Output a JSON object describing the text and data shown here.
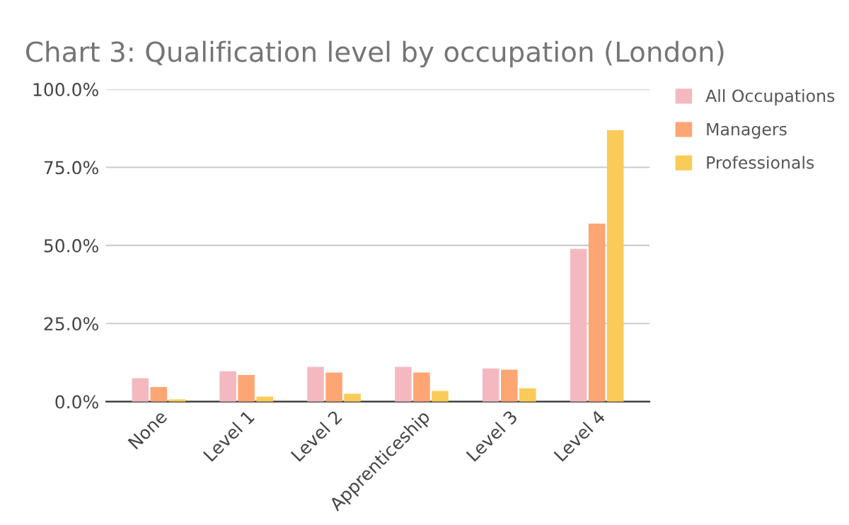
{
  "chart_data": {
    "type": "bar",
    "title": "Chart 3: Qualification level by occupation (London)",
    "categories": [
      "None",
      "Level 1",
      "Level 2",
      "Apprenticeship",
      "Level 3",
      "Level 4"
    ],
    "series": [
      {
        "name": "All Occupations",
        "color": "#f4b9c0",
        "values": [
          7.5,
          9.7,
          11.1,
          11.1,
          10.6,
          48.9
        ]
      },
      {
        "name": "Managers",
        "color": "#fea574",
        "values": [
          4.7,
          8.5,
          9.3,
          9.3,
          10.2,
          57.0
        ]
      },
      {
        "name": "Professionals",
        "color": "#f9cb58",
        "values": [
          0.7,
          1.6,
          2.5,
          3.4,
          4.3,
          86.9
        ]
      }
    ],
    "ylim": [
      0,
      100
    ],
    "yticks": [
      {
        "value": 0,
        "label": "0.0%"
      },
      {
        "value": 25,
        "label": "25.0%"
      },
      {
        "value": 50,
        "label": "50.0%"
      },
      {
        "value": 75,
        "label": "75.0%"
      },
      {
        "value": 100,
        "label": "100.0%"
      }
    ],
    "grid": "y",
    "legend": "top right"
  }
}
